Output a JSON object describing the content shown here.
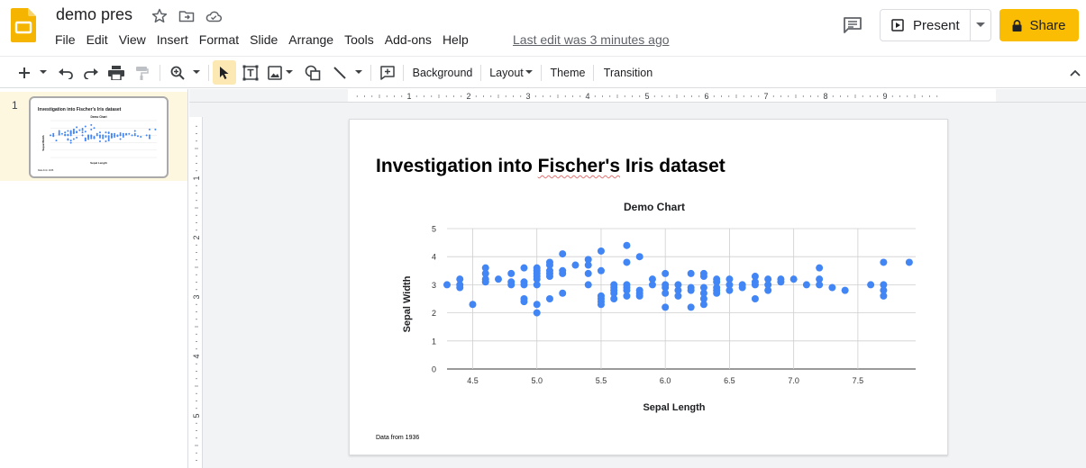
{
  "app": {
    "doc_title": "demo pres",
    "last_edit": "Last edit was 3 minutes ago",
    "menu": [
      "File",
      "Edit",
      "View",
      "Insert",
      "Format",
      "Slide",
      "Arrange",
      "Tools",
      "Add-ons",
      "Help"
    ],
    "present_label": "Present",
    "share_label": "Share",
    "accent": "#fbbc04"
  },
  "toolbar": {
    "icons": [
      "add-icon",
      "undo-icon",
      "redo-icon",
      "print-icon",
      "paint-format-icon",
      "zoom-icon",
      "select-icon",
      "text-box-icon",
      "image-icon",
      "shape-icon",
      "line-icon",
      "comment-add-icon",
      "collapse-icon"
    ],
    "background_label": "Background",
    "layout_label": "Layout",
    "theme_label": "Theme",
    "transition_label": "Transition"
  },
  "ruler": {
    "h_labels": [
      "1",
      "2",
      "3",
      "4",
      "5",
      "6",
      "7",
      "8",
      "9"
    ],
    "v_labels": [
      "1",
      "2",
      "3",
      "4",
      "5"
    ]
  },
  "filmstrip": {
    "slides": [
      {
        "number": "1",
        "title": "Investigation into Fischer's Iris dataset",
        "chart_title": "Demo Chart",
        "x_label": "Sepal Length",
        "y_label": "Sepal Width",
        "note": "Data from 1936"
      }
    ]
  },
  "slide": {
    "title_part1": "Investigation into ",
    "title_part2": "Fischer's",
    "title_part3": " Iris dataset",
    "note": "Data from 1936"
  },
  "chart_data": {
    "type": "scatter",
    "title": "Demo Chart",
    "xlabel": "Sepal Length",
    "ylabel": "Sepal Width",
    "xlim": [
      4.3,
      7.95
    ],
    "ylim": [
      0,
      5
    ],
    "x_ticks": [
      "4.5",
      "5.0",
      "5.5",
      "6.0",
      "6.5",
      "7.0",
      "7.5"
    ],
    "y_ticks": [
      "0",
      "1",
      "2",
      "3",
      "4",
      "5"
    ],
    "grid": true,
    "color": "#4285f4",
    "points": [
      [
        4.3,
        3.0
      ],
      [
        4.4,
        2.9
      ],
      [
        4.4,
        3.0
      ],
      [
        4.4,
        3.2
      ],
      [
        4.5,
        2.3
      ],
      [
        4.6,
        3.1
      ],
      [
        4.6,
        3.2
      ],
      [
        4.6,
        3.4
      ],
      [
        4.6,
        3.6
      ],
      [
        4.7,
        3.2
      ],
      [
        4.8,
        3.0
      ],
      [
        4.8,
        3.1
      ],
      [
        4.8,
        3.4
      ],
      [
        4.9,
        2.4
      ],
      [
        4.9,
        2.5
      ],
      [
        4.9,
        3.0
      ],
      [
        4.9,
        3.1
      ],
      [
        4.9,
        3.6
      ],
      [
        5.0,
        2.0
      ],
      [
        5.0,
        2.3
      ],
      [
        5.0,
        3.0
      ],
      [
        5.0,
        3.2
      ],
      [
        5.0,
        3.3
      ],
      [
        5.0,
        3.4
      ],
      [
        5.0,
        3.5
      ],
      [
        5.0,
        3.6
      ],
      [
        5.1,
        2.5
      ],
      [
        5.1,
        3.3
      ],
      [
        5.1,
        3.4
      ],
      [
        5.1,
        3.5
      ],
      [
        5.1,
        3.7
      ],
      [
        5.1,
        3.8
      ],
      [
        5.2,
        2.7
      ],
      [
        5.2,
        3.4
      ],
      [
        5.2,
        3.5
      ],
      [
        5.2,
        4.1
      ],
      [
        5.3,
        3.7
      ],
      [
        5.4,
        3.0
      ],
      [
        5.4,
        3.4
      ],
      [
        5.4,
        3.7
      ],
      [
        5.4,
        3.9
      ],
      [
        5.5,
        2.3
      ],
      [
        5.5,
        2.4
      ],
      [
        5.5,
        2.5
      ],
      [
        5.5,
        2.6
      ],
      [
        5.5,
        3.5
      ],
      [
        5.5,
        4.2
      ],
      [
        5.6,
        2.5
      ],
      [
        5.6,
        2.7
      ],
      [
        5.6,
        2.8
      ],
      [
        5.6,
        2.9
      ],
      [
        5.6,
        3.0
      ],
      [
        5.7,
        2.6
      ],
      [
        5.7,
        2.8
      ],
      [
        5.7,
        2.9
      ],
      [
        5.7,
        3.0
      ],
      [
        5.7,
        3.8
      ],
      [
        5.7,
        4.4
      ],
      [
        5.8,
        2.6
      ],
      [
        5.8,
        2.7
      ],
      [
        5.8,
        2.8
      ],
      [
        5.8,
        4.0
      ],
      [
        5.9,
        3.0
      ],
      [
        5.9,
        3.2
      ],
      [
        6.0,
        2.2
      ],
      [
        6.0,
        2.7
      ],
      [
        6.0,
        2.9
      ],
      [
        6.0,
        3.0
      ],
      [
        6.0,
        3.4
      ],
      [
        6.1,
        2.6
      ],
      [
        6.1,
        2.8
      ],
      [
        6.1,
        3.0
      ],
      [
        6.2,
        2.2
      ],
      [
        6.2,
        2.8
      ],
      [
        6.2,
        2.9
      ],
      [
        6.2,
        3.4
      ],
      [
        6.3,
        2.3
      ],
      [
        6.3,
        2.5
      ],
      [
        6.3,
        2.7
      ],
      [
        6.3,
        2.9
      ],
      [
        6.3,
        3.3
      ],
      [
        6.3,
        3.4
      ],
      [
        6.4,
        2.7
      ],
      [
        6.4,
        2.8
      ],
      [
        6.4,
        2.9
      ],
      [
        6.4,
        3.1
      ],
      [
        6.4,
        3.2
      ],
      [
        6.5,
        2.8
      ],
      [
        6.5,
        3.0
      ],
      [
        6.5,
        3.2
      ],
      [
        6.6,
        2.9
      ],
      [
        6.6,
        3.0
      ],
      [
        6.7,
        2.5
      ],
      [
        6.7,
        3.0
      ],
      [
        6.7,
        3.1
      ],
      [
        6.7,
        3.3
      ],
      [
        6.8,
        2.8
      ],
      [
        6.8,
        3.0
      ],
      [
        6.8,
        3.2
      ],
      [
        6.9,
        3.1
      ],
      [
        6.9,
        3.2
      ],
      [
        7.0,
        3.2
      ],
      [
        7.1,
        3.0
      ],
      [
        7.2,
        3.0
      ],
      [
        7.2,
        3.2
      ],
      [
        7.2,
        3.6
      ],
      [
        7.3,
        2.9
      ],
      [
        7.4,
        2.8
      ],
      [
        7.6,
        3.0
      ],
      [
        7.7,
        2.6
      ],
      [
        7.7,
        2.8
      ],
      [
        7.7,
        3.0
      ],
      [
        7.7,
        3.8
      ],
      [
        7.9,
        3.8
      ]
    ]
  }
}
